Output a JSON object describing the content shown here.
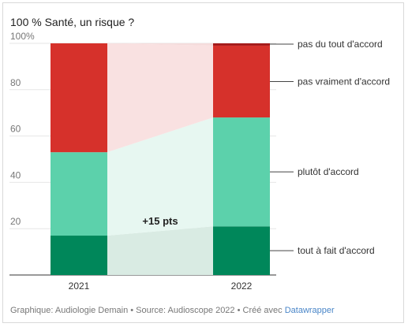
{
  "chart_data": {
    "type": "bar",
    "stacked": true,
    "title": "100 % Santé, un risque ?",
    "categories": [
      "2021",
      "2022"
    ],
    "series": [
      {
        "name": "tout à fait d'accord",
        "color": "#00875a",
        "values": [
          17,
          21
        ]
      },
      {
        "name": "plutôt d'accord",
        "color": "#5cd1ab",
        "values": [
          36,
          47
        ]
      },
      {
        "name": "pas vraiment d'accord",
        "color": "#d6312b",
        "values": [
          47,
          31
        ]
      },
      {
        "name": "pas du tout d'accord",
        "color": "#a51919",
        "values": [
          0,
          1
        ]
      }
    ],
    "connector_colors": [
      "#d9ebe3",
      "#e7f7f1",
      "#f9e1e1",
      "#f5dcdc"
    ],
    "ylim": [
      0,
      100
    ],
    "yticks": [
      "20",
      "40",
      "60",
      "80",
      "100%"
    ],
    "ytick_values": [
      20,
      40,
      60,
      80,
      100
    ],
    "annotation": "+15 pts",
    "grid": true,
    "legend": "right, direct labels"
  },
  "footer": {
    "text": "Graphique: Audiologie Demain • Source: Audioscope 2022 • Créé avec ",
    "link": "Datawrapper"
  }
}
